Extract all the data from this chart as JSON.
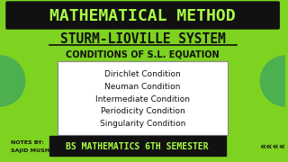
{
  "bg_color": "#7ED321",
  "title1": "MATHEMATICAL METHOD",
  "title1_bg": "#111111",
  "title1_color": "#AAFF44",
  "title2": "STURM-LIOVILLE SYSTEM",
  "title2_color": "#111111",
  "title3": "CONDITIONS OF S.L. EQUATION",
  "title3_color": "#111111",
  "box_items": [
    "Dirichlet Condition",
    "Neuman Condition",
    "Intermediate Condition",
    "Periodicity Condition",
    "Singularity Condition"
  ],
  "box_bg": "#FFFFFF",
  "box_text_color": "#111111",
  "notes_line1": "NOTES BY:",
  "notes_line2": "SAJID MUSHTAQ",
  "notes_color": "#111111",
  "bottom_banner_bg": "#111111",
  "bottom_text": "BS MATHEMATICS 6TH SEMESTER",
  "bottom_text_color": "#AAFF44",
  "arrow_color": "#111111",
  "left_circle_color": "#4CAF50",
  "right_circle_color": "#4CAF50"
}
